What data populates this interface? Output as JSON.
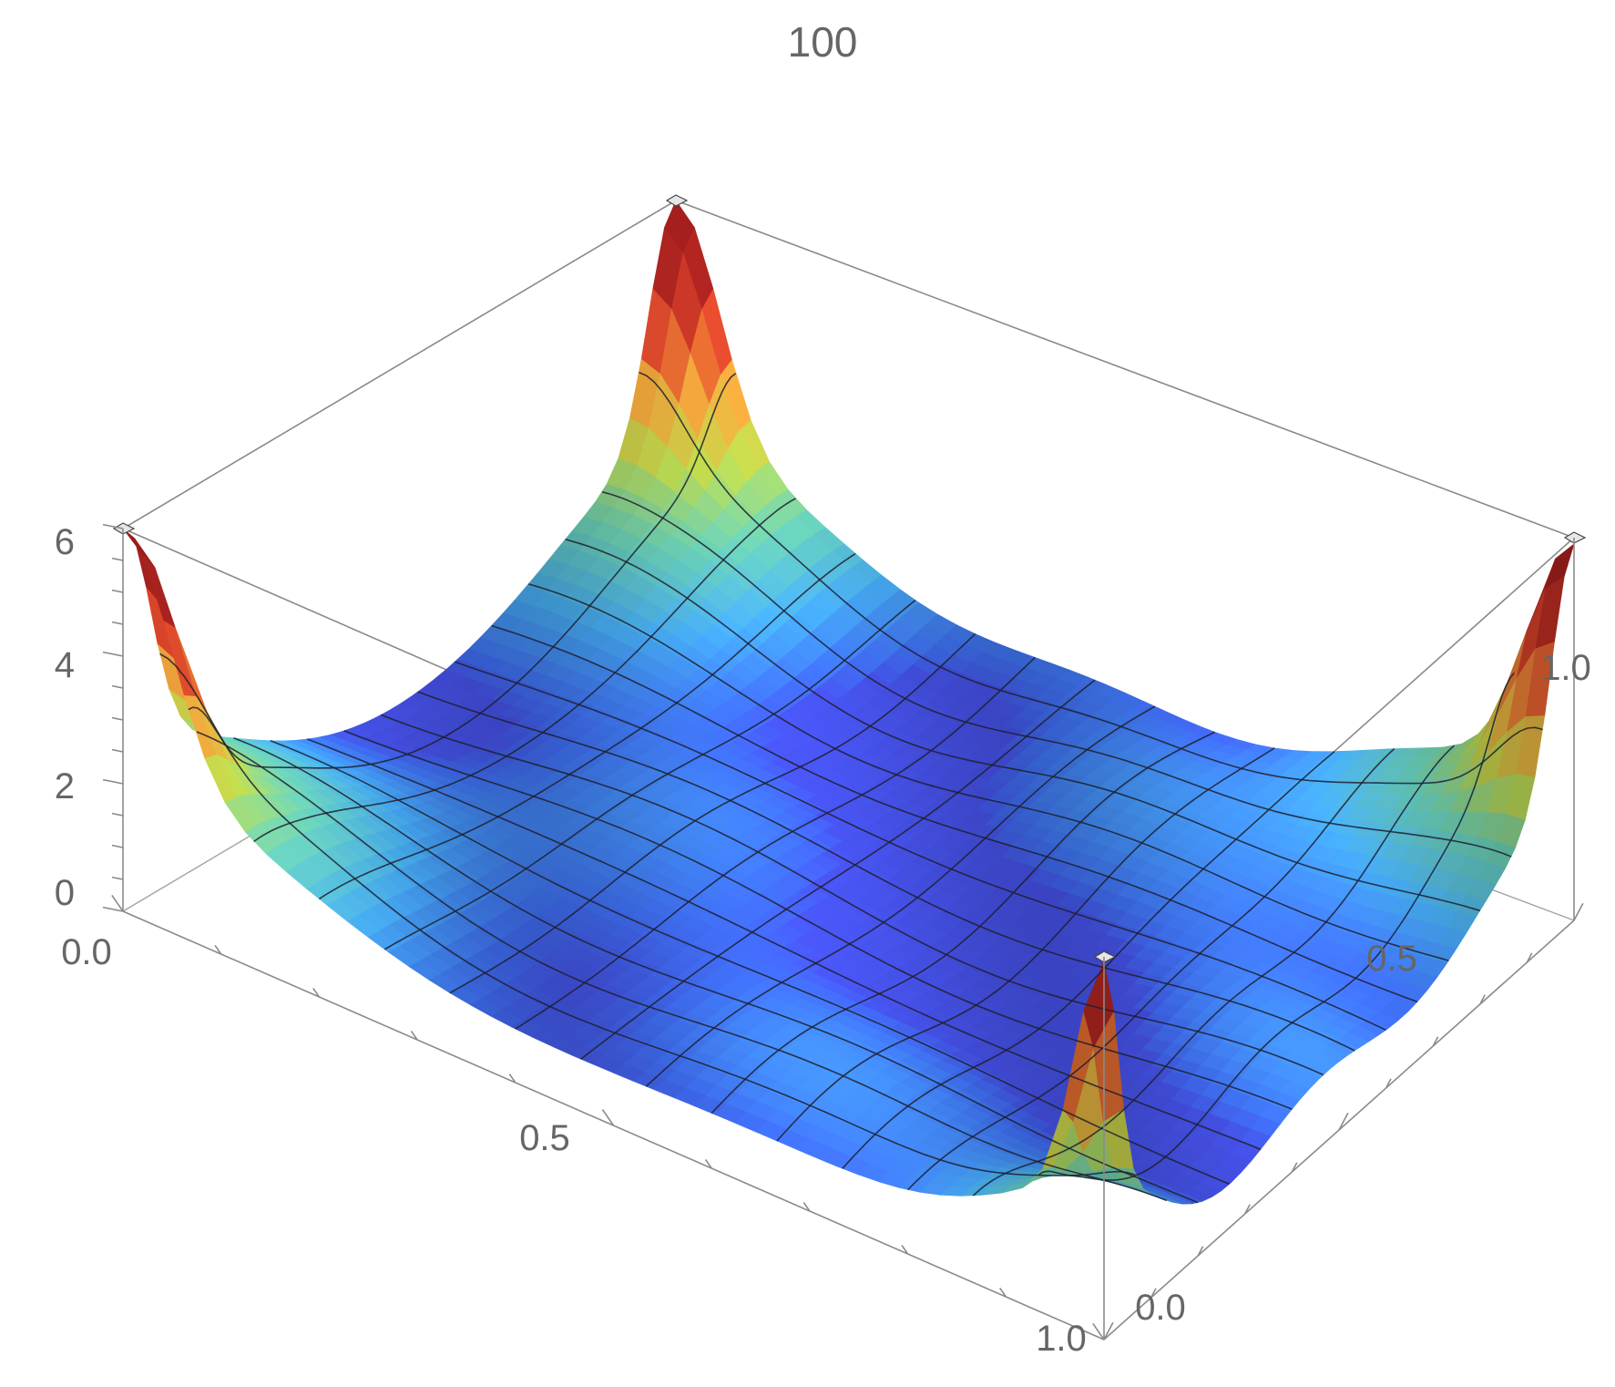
{
  "chart_data": {
    "type": "surface3d",
    "title": "100",
    "xlabel": "",
    "ylabel": "",
    "zlabel": "",
    "x_ticks": [
      "0.0",
      "0.5",
      "1.0"
    ],
    "y_ticks": [
      "0.0",
      "0.5",
      "1.0"
    ],
    "z_ticks": [
      "0",
      "2",
      "4",
      "6"
    ],
    "xlim": [
      0,
      1
    ],
    "ylim": [
      0,
      1
    ],
    "zlim": [
      0,
      6
    ],
    "mesh_lines": 15,
    "grid": false,
    "peaks": [
      {
        "x": 0,
        "y": 0,
        "z": 6
      },
      {
        "x": 0,
        "y": 1,
        "z": 6
      },
      {
        "x": 1,
        "y": 1,
        "z": 6
      },
      {
        "x": 1,
        "y": 0,
        "z": 6
      }
    ],
    "base_level": 0.8,
    "colormap": [
      "#6a1fb0",
      "#4a3ae0",
      "#3f6ff2",
      "#45a9f0",
      "#66c9b0",
      "#b8d24a",
      "#e8a33a",
      "#d9442a",
      "#a11d1d"
    ]
  }
}
